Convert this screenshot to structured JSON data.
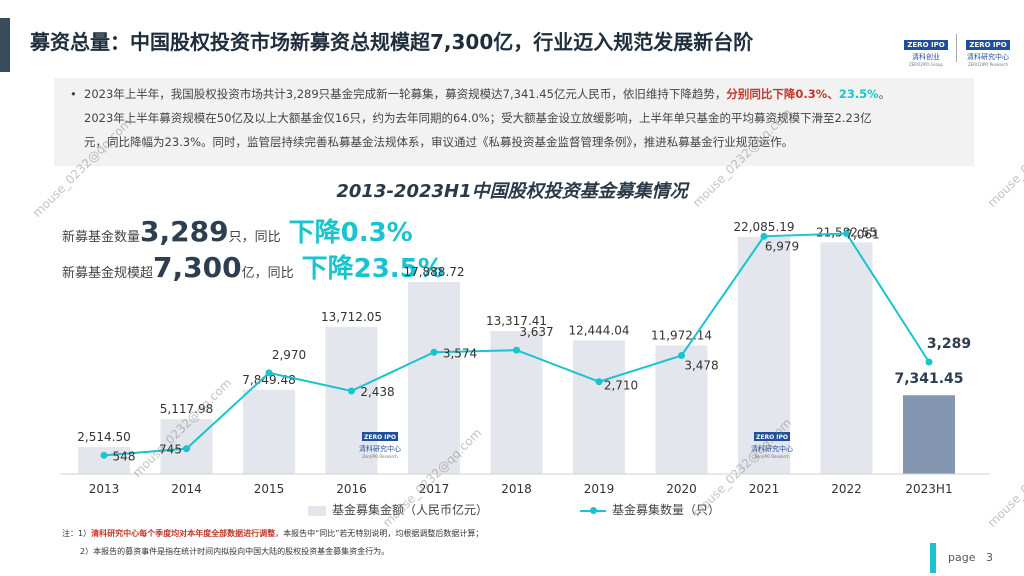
{
  "header": {
    "title": "募资总量：中国股权投资市场新募资总规模超7,300亿，行业迈入规范发展新台阶",
    "logo_left": {
      "badge": "ZERO IPO",
      "cn": "清科创业",
      "en": "ZERO2IPO Group"
    },
    "logo_right": {
      "badge": "ZERO IPO",
      "cn": "清科研究中心",
      "en": "ZERO2IPO Research"
    }
  },
  "summary": {
    "bullet": "•",
    "p1_a": "2023年上半年，我国股权投资市场共计3,289只基金完成新一轮募集，募资规模达7,341.45亿元人民币，依旧维持下降趋势，",
    "p1_red": "分别同比下降0.3%、",
    "p1_teal": "23.5%",
    "p1_end": "。",
    "p2": "2023年上半年募资规模在50亿及以上大额基金仅16只，约为去年同期的64.0%；受大额基金设立放缓影响，上半年单只基金的平均募资规模下滑至2.23亿",
    "p3": "元，同比降幅为23.3%。同时，监管层持续完善私募基金法规体系，审议通过《私募投资基金监督管理条例》，推进私募基金行业规范运作。"
  },
  "kpi": {
    "count_label": "新募基金数量",
    "count_value": "3,289",
    "count_unit": "只，同比",
    "count_change": "下降0.3%",
    "scale_label": "新募基金规模超",
    "scale_value": "7,300",
    "scale_unit": "亿，同比",
    "scale_change": "下降23.5%"
  },
  "chart_data": {
    "type": "bar",
    "title": "2013-2023H1中国股权投资基金募集情况",
    "categories": [
      "2013",
      "2014",
      "2015",
      "2016",
      "2017",
      "2018",
      "2019",
      "2020",
      "2021",
      "2022",
      "2023H1"
    ],
    "series": [
      {
        "name": "基金募集金额（人民币亿元）",
        "type": "bar",
        "values": [
          2514.5,
          5117.98,
          7849.48,
          13712.05,
          17888.72,
          13317.41,
          12444.04,
          11972.14,
          22085.19,
          21582.55,
          7341.45
        ],
        "labels": [
          "2,514.50",
          "5,117.98",
          "7,849.48",
          "13,712.05",
          "17,888.72",
          "13,317.41",
          "12,444.04",
          "11,972.14",
          "22,085.19",
          "21,582.55",
          "7,341.45"
        ]
      },
      {
        "name": "基金募集数量（只）",
        "type": "line",
        "values": [
          548,
          745,
          2970,
          2438,
          3574,
          3637,
          2710,
          3478,
          6979,
          7061,
          3289
        ],
        "labels": [
          "548",
          "745",
          "2,970",
          "2,438",
          "3,574",
          "3,637",
          "2,710",
          "3,478",
          "6,979",
          "7,061",
          "3,289"
        ]
      }
    ],
    "bar_color": "#e3e6ec",
    "last_bar_color": "#8497b0",
    "line_color": "#19c3cf"
  },
  "chart_badge": {
    "badge": "ZERO IPO",
    "cn": "清科研究中心",
    "en": "ZeroIPO Research"
  },
  "footnotes": {
    "n1_prefix": "注：1）",
    "n1_red": "清科研究中心每个季度均对本年度全部数据进行调整",
    "n1_rest": "，本报告中“同比”若无特别说明，均根据调整后数据计算；",
    "n2": "2）本报告的募资事件是指在统计时间内拟投向中国大陆的股权投资基金募集资金行为。"
  },
  "page": {
    "label": "page",
    "number": "3"
  },
  "watermark": "mouse_0232@qq.com"
}
